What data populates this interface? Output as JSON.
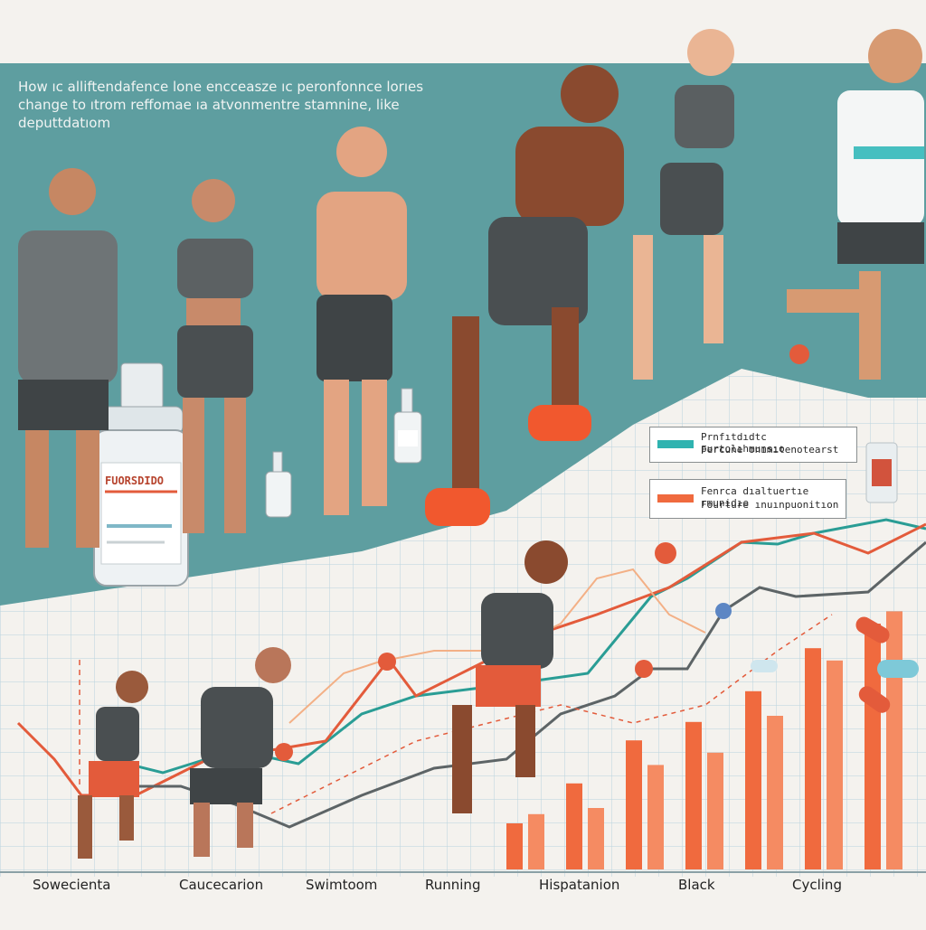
{
  "title": {
    "line1": "How ıc alliftendafence lone encceasze ıc peronfonnce lorıes",
    "line2": "change to ıtrom reffomae ıa atvonmentre stamnine, like",
    "line3": "deputtdatıom"
  },
  "bottle_label": "FUORSDIDO",
  "legend": {
    "item1": {
      "line1": "Prnfıtdıdtc purtolıhmunsıo",
      "line2": "Fercune onımıtenotearst",
      "color": "#2fb3b0"
    },
    "item2": {
      "line1": "Fenrca dıaltuertıe rmunidıe",
      "line2": "Fourture ınuınpuonitıon",
      "color": "#f06a3e"
    }
  },
  "categories": [
    "Sowecienta",
    "Caucecarion",
    "Swimtoom",
    "Running",
    "Hispatanion",
    "Black",
    "Cycling"
  ],
  "colors": {
    "teal_bg": "#5e9ea0",
    "orange": "#f06a3e",
    "teal_line": "#2a9d95",
    "grey_line": "#5d6466"
  },
  "chart_data": {
    "type": "bar",
    "title": "",
    "categories": [
      "Sowecienta",
      "Caucecarion",
      "Swimtoom",
      "Running",
      "Hispatanion",
      "Black",
      "Cycling"
    ],
    "series": [
      {
        "name": "Prnfıtdıdtc purtolıhmunsıo",
        "values": [
          15,
          28,
          42,
          48,
          58,
          72,
          80
        ]
      },
      {
        "name": "Fenrca dıaltuertıe rmunidıe",
        "values": [
          18,
          20,
          34,
          38,
          50,
          68,
          84
        ]
      }
    ]
  }
}
